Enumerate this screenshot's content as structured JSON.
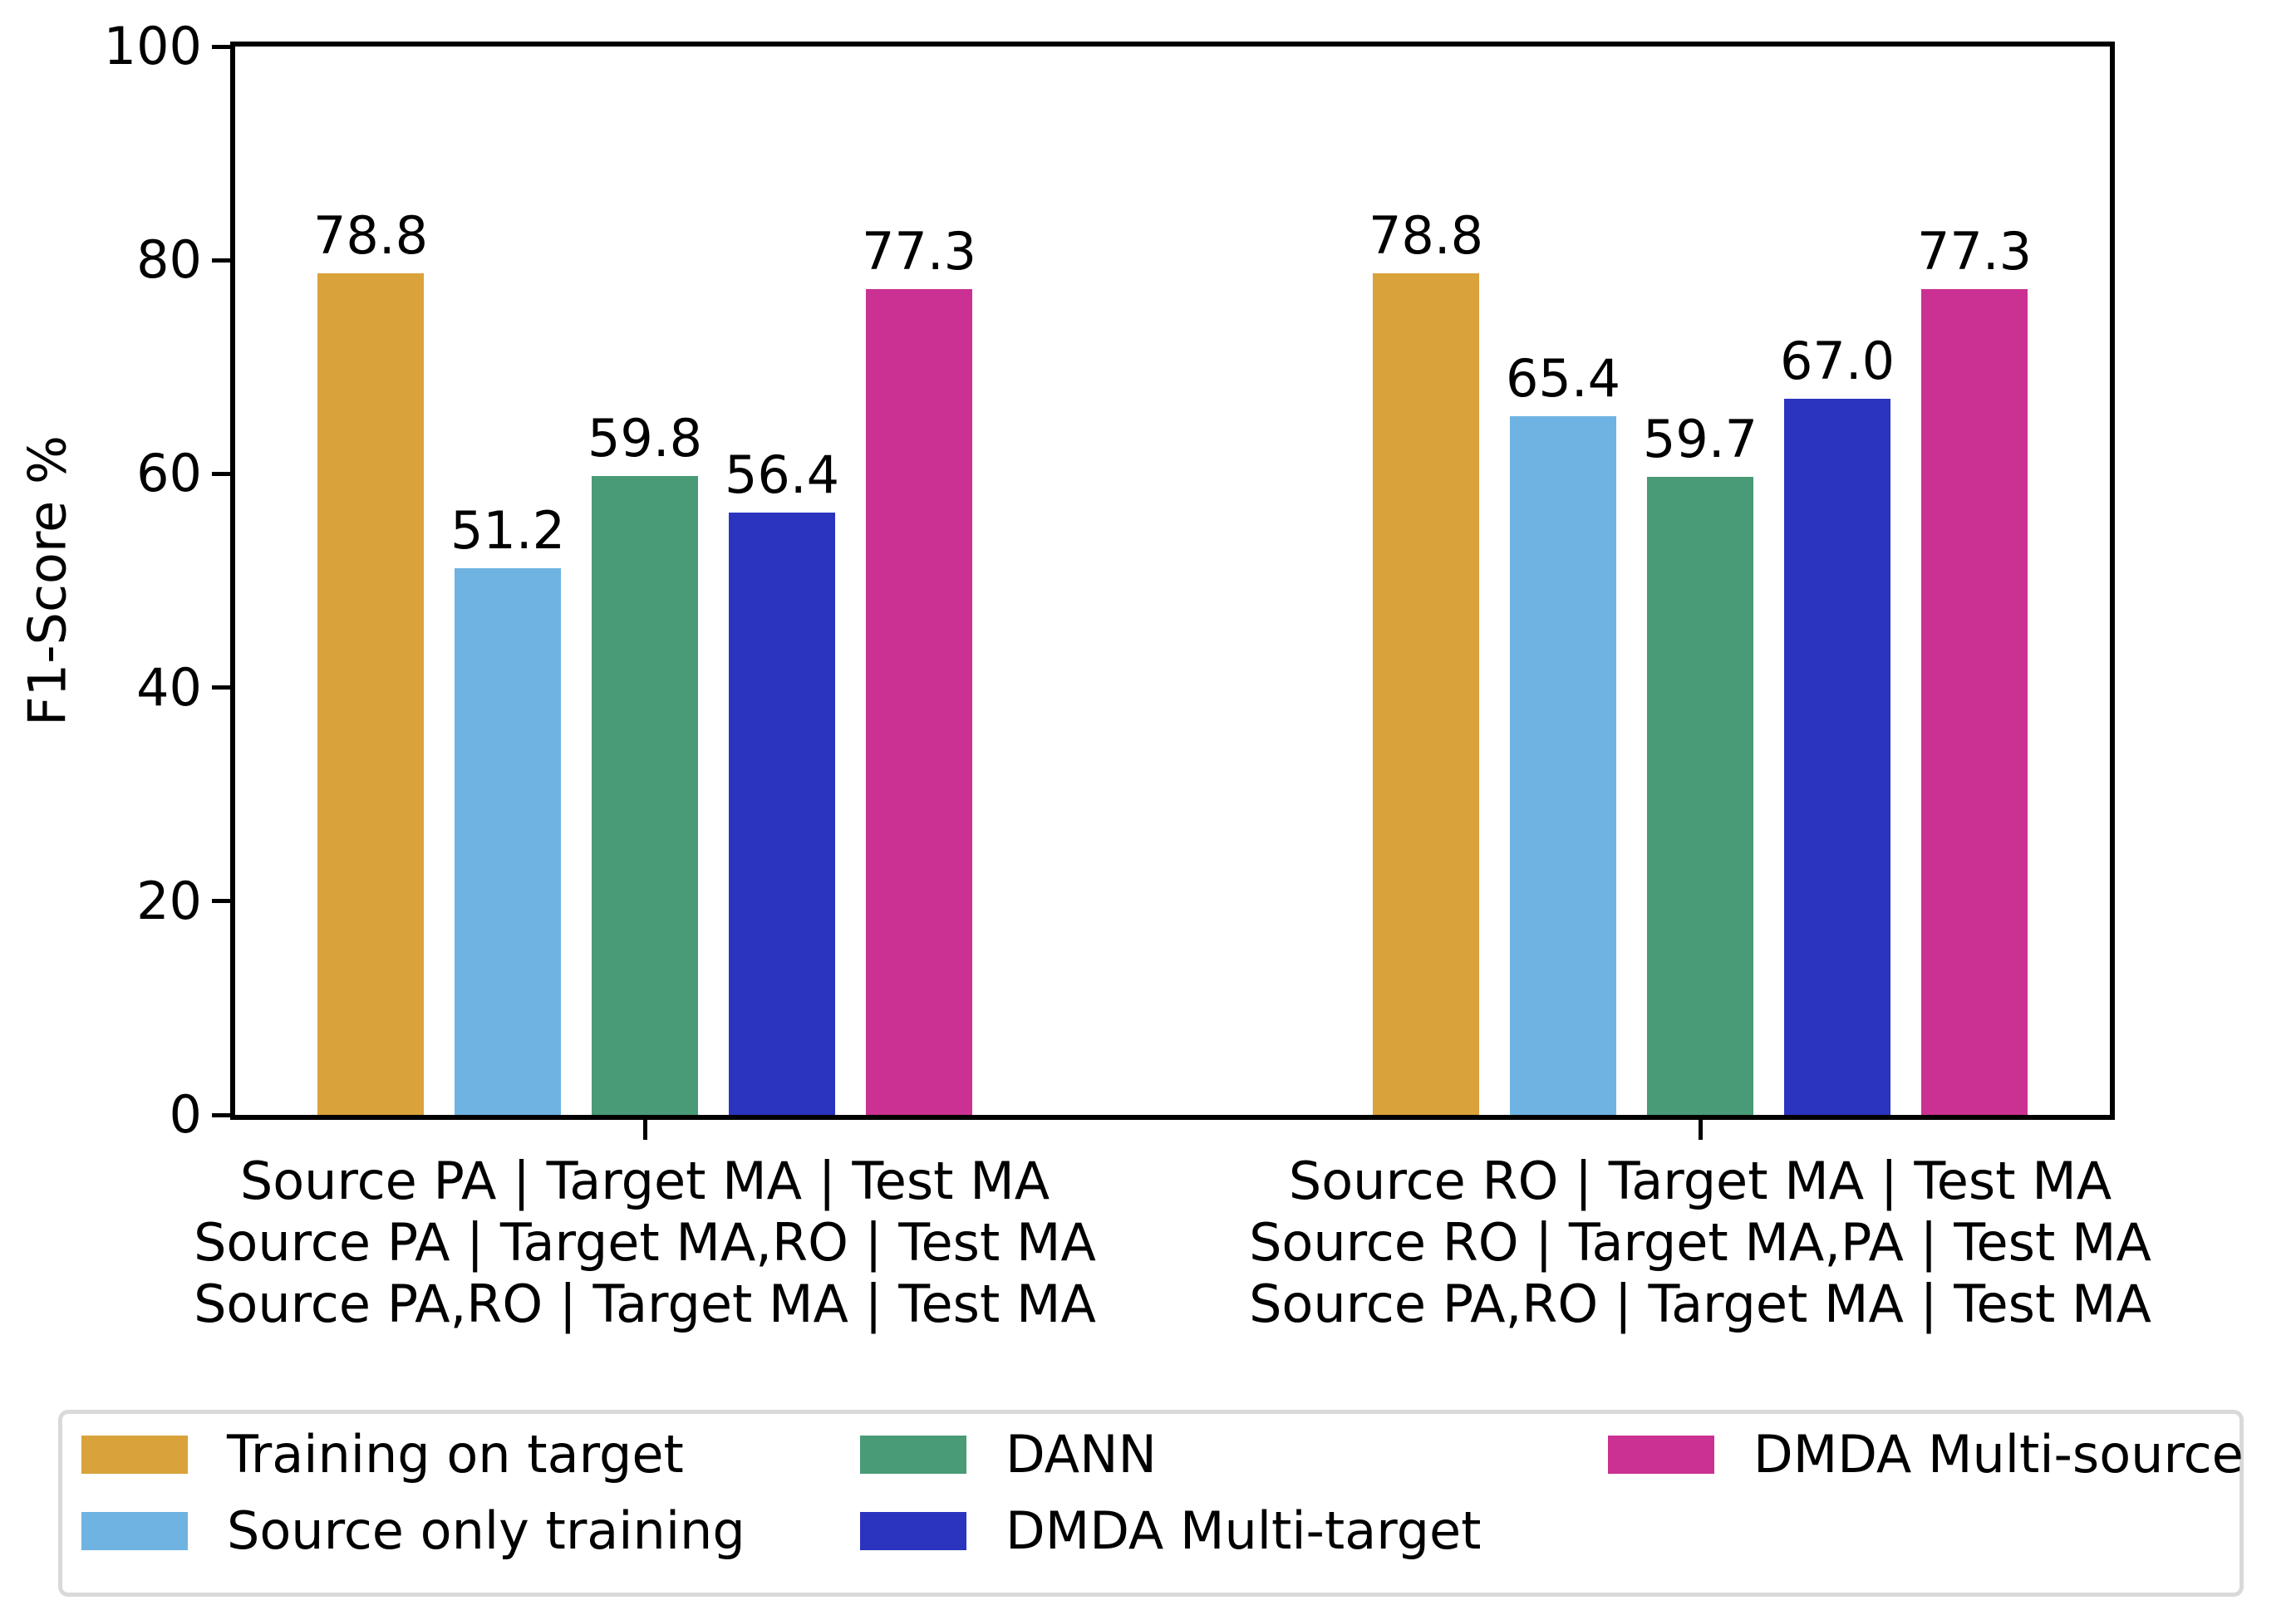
{
  "chart_data": {
    "type": "bar",
    "title": "",
    "xlabel": "",
    "ylabel": "F1-Score %",
    "ylim": [
      0,
      100
    ],
    "y_ticks": [
      0,
      20,
      40,
      60,
      80,
      100
    ],
    "grid": false,
    "legend_position": "bottom",
    "legend_columns": 3,
    "value_label_decimals": 1,
    "groups": [
      {
        "tick_label_lines": [
          "Source PA | Target MA | Test MA",
          "Source PA | Target MA,RO | Test MA",
          "Source PA,RO | Target MA | Test MA"
        ]
      },
      {
        "tick_label_lines": [
          "Source RO | Target MA | Test MA",
          "Source RO | Target MA,PA | Test MA",
          "Source PA,RO | Target MA | Test MA"
        ]
      }
    ],
    "series": [
      {
        "name": "Training on target",
        "color": "#d9a23a",
        "values": [
          78.8,
          78.8
        ]
      },
      {
        "name": "Source only training",
        "color": "#6fb3e3",
        "values": [
          51.2,
          65.4
        ]
      },
      {
        "name": "DANN",
        "color": "#489b76",
        "values": [
          59.8,
          59.7
        ]
      },
      {
        "name": "DMDA Multi-target",
        "color": "#2b34be",
        "values": [
          56.4,
          67.0
        ]
      },
      {
        "name": "DMDA Multi-source",
        "color": "#cb3193",
        "values": [
          77.3,
          77.3
        ]
      }
    ],
    "axis_color": "#000000",
    "text_color": "#000000"
  }
}
